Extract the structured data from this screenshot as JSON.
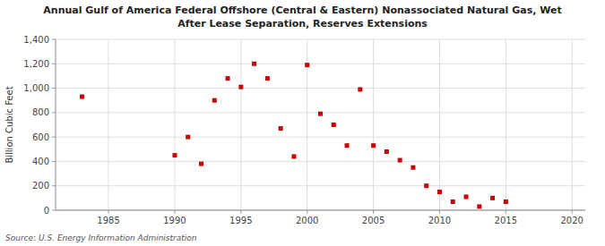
{
  "chart_data": {
    "type": "scatter",
    "title": "Annual Gulf of America Federal Offshore (Central & Eastern) Nonassociated Natural Gas, Wet",
    "subtitle": "After Lease Separation, Reserves Extensions",
    "y_label": "Billion Cubic Feet",
    "annotations": [
      "Source: U.S. Energy Information Administration"
    ],
    "x": [
      1983,
      1990,
      1991,
      1992,
      1993,
      1994,
      1995,
      1996,
      1997,
      1998,
      1999,
      2000,
      2001,
      2002,
      2003,
      2004,
      2005,
      2006,
      2007,
      2008,
      2009,
      2010,
      2011,
      2012,
      2013,
      2014,
      2015
    ],
    "values": [
      930,
      450,
      600,
      380,
      900,
      1080,
      1010,
      1200,
      1080,
      670,
      440,
      1190,
      790,
      700,
      530,
      990,
      530,
      480,
      410,
      350,
      200,
      150,
      70,
      110,
      30,
      100,
      70
    ],
    "color": "#cc0000",
    "marker": "square",
    "xlim": [
      1981,
      2021
    ],
    "ylim": [
      0,
      1400
    ],
    "xticks": [
      1985,
      1990,
      1995,
      2000,
      2005,
      2010,
      2015,
      2020
    ],
    "yticks": [
      0,
      200,
      400,
      600,
      800,
      {
        "value": 1000,
        "label": "1,000"
      },
      {
        "value": 1200,
        "label": "1,200"
      },
      {
        "value": 1400,
        "label": "1,400"
      }
    ],
    "grid": true
  }
}
